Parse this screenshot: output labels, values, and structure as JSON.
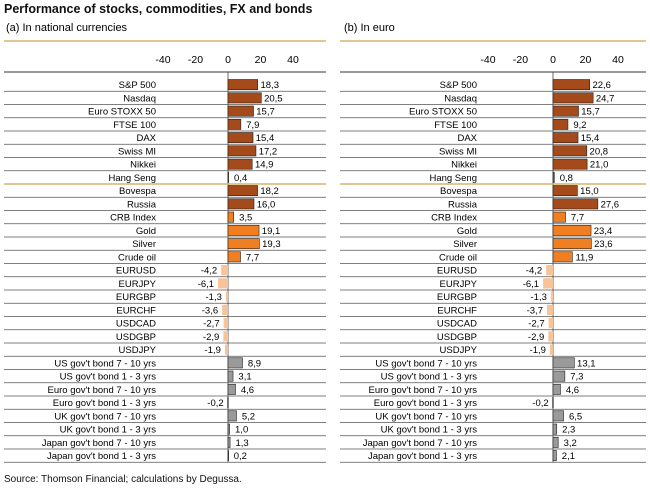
{
  "title": "Performance of stocks, commodities,  FX and bonds",
  "source": "Source: Thomson Financial; calculations by Degussa.",
  "colors": {
    "stocks": "#a54a1a",
    "commodities": "#f07f22",
    "fx": "#f7c49a",
    "bonds": "#9a9a9a",
    "axis_gold": "#c9a64e",
    "line": "#555555"
  },
  "chart_data": [
    {
      "type": "bar",
      "orientation": "horizontal",
      "title": "(a) In national currencies",
      "xlim": [
        -40,
        40
      ],
      "xticks": [
        "-40",
        "-20",
        "0",
        "20",
        "40"
      ],
      "categories": [
        "S&P 500",
        "Nasdaq",
        "Euro STOXX 50",
        "FTSE 100",
        "DAX",
        "Swiss MI",
        "Nikkei",
        "Hang Seng",
        "Bovespa",
        "Russia",
        "CRB Index",
        "Gold",
        "Silver",
        "Crude oil",
        "EURUSD",
        "EURJPY",
        "EURGBP",
        "EURCHF",
        "USDCAD",
        "USDGBP",
        "USDJPY",
        "US gov't bond 7 - 10 yrs",
        "US gov't bond 1 - 3 yrs",
        "Euro gov't bond 7 - 10 yrs",
        "Euro gov't bond 1 - 3 yrs",
        "UK gov't bond 7 - 10 yrs",
        "UK gov't bond 1 - 3 yrs",
        "Japan gov't bond 7 - 10 yrs",
        "Japan gov't bond 1 - 3 yrs"
      ],
      "groups": [
        "stocks",
        "stocks",
        "stocks",
        "stocks",
        "stocks",
        "stocks",
        "stocks",
        "stocks",
        "stocks",
        "stocks",
        "commodities",
        "commodities",
        "commodities",
        "commodities",
        "fx",
        "fx",
        "fx",
        "fx",
        "fx",
        "fx",
        "fx",
        "bonds",
        "bonds",
        "bonds",
        "bonds",
        "bonds",
        "bonds",
        "bonds",
        "bonds"
      ],
      "values": [
        18.3,
        20.5,
        15.7,
        7.9,
        15.4,
        17.2,
        14.9,
        0.4,
        18.2,
        16.0,
        3.5,
        19.1,
        19.3,
        7.7,
        -4.2,
        -6.1,
        -1.3,
        -3.6,
        -2.7,
        -2.9,
        -1.9,
        8.9,
        3.1,
        4.6,
        -0.2,
        5.2,
        1.0,
        1.3,
        0.2
      ],
      "labels": [
        "18,3",
        "20,5",
        "15,7",
        "7,9",
        "15,4",
        "17,2",
        "14,9",
        "0,4",
        "18,2",
        "16,0",
        "3,5",
        "19,1",
        "19,3",
        "7,7",
        "-4,2",
        "-6,1",
        "-1,3",
        "-3,6",
        "-2,7",
        "-2,9",
        "-1,9",
        "8,9",
        "3,1",
        "4,6",
        "-0,2",
        "5,2",
        "1,0",
        "1,3",
        "0,2"
      ]
    },
    {
      "type": "bar",
      "orientation": "horizontal",
      "title": "(b) In euro",
      "xlim": [
        -40,
        40
      ],
      "xticks": [
        "-40",
        "-20",
        "0",
        "20",
        "40"
      ],
      "categories": [
        "S&P 500",
        "Nasdaq",
        "Euro STOXX 50",
        "FTSE 100",
        "DAX",
        "Swiss MI",
        "Nikkei",
        "Hang Seng",
        "Bovespa",
        "Russia",
        "CRB Index",
        "Gold",
        "Silver",
        "Crude oil",
        "EURUSD",
        "EURJPY",
        "EURGBP",
        "EURCHF",
        "USDCAD",
        "USDGBP",
        "USDJPY",
        "US gov't bond 7 - 10 yrs",
        "US gov't bond 1 - 3 yrs",
        "Euro gov't bond 7 - 10 yrs",
        "Euro gov't bond 1 - 3 yrs",
        "UK gov't bond 7 - 10 yrs",
        "UK gov't bond 1 - 3 yrs",
        "Japan gov't bond 7 - 10 yrs",
        "Japan gov't bond 1 - 3 yrs"
      ],
      "groups": [
        "stocks",
        "stocks",
        "stocks",
        "stocks",
        "stocks",
        "stocks",
        "stocks",
        "stocks",
        "stocks",
        "stocks",
        "commodities",
        "commodities",
        "commodities",
        "commodities",
        "fx",
        "fx",
        "fx",
        "fx",
        "fx",
        "fx",
        "fx",
        "bonds",
        "bonds",
        "bonds",
        "bonds",
        "bonds",
        "bonds",
        "bonds",
        "bonds"
      ],
      "values": [
        22.6,
        24.7,
        15.7,
        9.2,
        15.4,
        20.8,
        21.0,
        0.8,
        15.0,
        27.6,
        7.7,
        23.4,
        23.6,
        11.9,
        -4.2,
        -6.1,
        -1.3,
        -3.7,
        -2.7,
        -2.9,
        -1.9,
        13.1,
        7.3,
        4.6,
        -0.2,
        6.5,
        2.3,
        3.2,
        2.1
      ],
      "labels": [
        "22,6",
        "24,7",
        "15,7",
        "9,2",
        "15,4",
        "20,8",
        "21,0",
        "0,8",
        "15,0",
        "27,6",
        "7,7",
        "23,4",
        "23,6",
        "11,9",
        "-4,2",
        "-6,1",
        "-1,3",
        "-3,7",
        "-2,7",
        "-2,9",
        "-1,9",
        "13,1",
        "7,3",
        "4,6",
        "-0,2",
        "6,5",
        "2,3",
        "3,2",
        "2,1"
      ]
    }
  ]
}
